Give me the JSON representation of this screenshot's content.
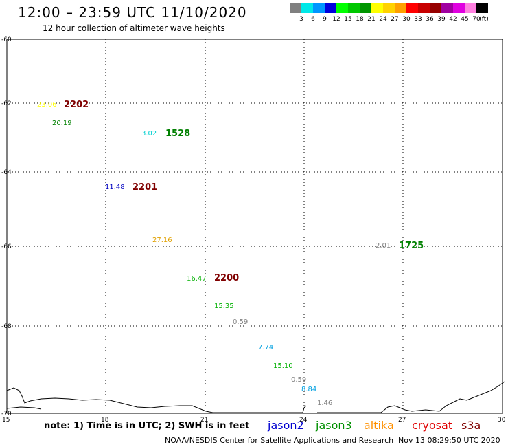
{
  "header": {
    "title": "12:00 – 23:59 UTC 11/10/2020",
    "subtitle": "12 hour collection of altimeter wave heights"
  },
  "colorbar": {
    "colors": [
      "#808080",
      "#00e8e8",
      "#0096ff",
      "#0000dd",
      "#00ff00",
      "#00c800",
      "#009600",
      "#ffff00",
      "#ffd200",
      "#ffa000",
      "#ff0000",
      "#c80000",
      "#960000",
      "#a000a0",
      "#e000e0",
      "#ff80e0",
      "#000000"
    ],
    "labels": [
      "3",
      "6",
      "9",
      "12",
      "15",
      "18",
      "21",
      "24",
      "27",
      "30",
      "33",
      "36",
      "39",
      "42",
      "45",
      "70",
      "(ft)"
    ]
  },
  "axes": {
    "lat_labels": [
      "-60",
      "-62",
      "-64",
      "-66",
      "-68",
      "-70"
    ],
    "lon_labels": [
      "15",
      "18",
      "21",
      "24",
      "27",
      "30"
    ]
  },
  "observations": [
    {
      "text": "23.06",
      "color": "#ffff00"
    },
    {
      "text": "2202",
      "color": "#800000"
    },
    {
      "text": "20.19",
      "color": "#008000"
    },
    {
      "text": "3.02",
      "color": "#00d0d0"
    },
    {
      "text": "1528",
      "color": "#008000"
    },
    {
      "text": "11.48",
      "color": "#0000c0"
    },
    {
      "text": "2201",
      "color": "#800000"
    },
    {
      "text": "27.16",
      "color": "#e0a000"
    },
    {
      "text": "2.01",
      "color": "#808080"
    },
    {
      "text": "1725",
      "color": "#008000"
    },
    {
      "text": "16.47",
      "color": "#00b000"
    },
    {
      "text": "2200",
      "color": "#800000"
    },
    {
      "text": "15.35",
      "color": "#00b000"
    },
    {
      "text": "0.59",
      "color": "#808080"
    },
    {
      "text": "7.74",
      "color": "#00a0e0"
    },
    {
      "text": "15.10",
      "color": "#00b000"
    },
    {
      "text": "0.59",
      "color": "#808080"
    },
    {
      "text": "8.84",
      "color": "#00a0e0"
    },
    {
      "text": "1.46",
      "color": "#808080"
    }
  ],
  "footer": {
    "note": "note: 1) Time is in UTC; 2) SWH is in feet",
    "missions": [
      {
        "name": "jason2",
        "color": "#0000d0"
      },
      {
        "name": "jason3",
        "color": "#009000"
      },
      {
        "name": "altika",
        "color": "#ff9000"
      },
      {
        "name": "cryosat",
        "color": "#e00000"
      },
      {
        "name": "s3a",
        "color": "#800000"
      }
    ],
    "credit": "NOAA/NESDIS Center for Satellite Applications and Research",
    "timestamp": "Nov 13 08:29:50 UTC 2020"
  }
}
